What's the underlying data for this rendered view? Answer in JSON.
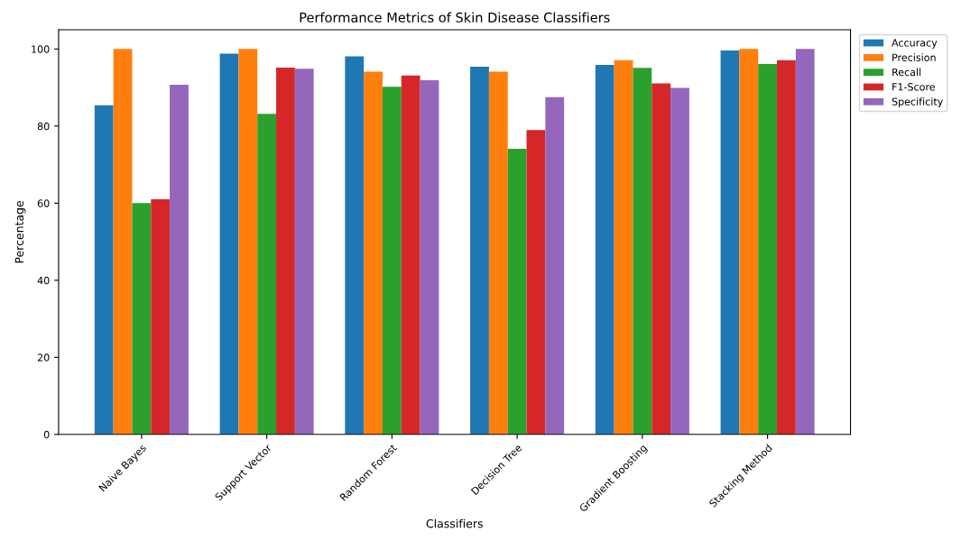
{
  "chart_data": {
    "type": "bar",
    "title": "Performance Metrics of Skin Disease Classifiers",
    "xlabel": "Classifiers",
    "ylabel": "Percentage",
    "categories": [
      "Naive Bayes",
      "Support Vector",
      "Random Forest",
      "Decision Tree",
      "Gradient Boosting",
      "Stacking Method"
    ],
    "series": [
      {
        "name": "Accuracy",
        "color": "#1f77b4",
        "values": [
          85.4,
          98.8,
          98.1,
          95.4,
          95.9,
          99.6
        ]
      },
      {
        "name": "Precision",
        "color": "#ff7f0e",
        "values": [
          100,
          100,
          94.1,
          94.1,
          97.1,
          100
        ]
      },
      {
        "name": "Recall",
        "color": "#2ca02c",
        "values": [
          60,
          83.2,
          90.2,
          74.1,
          95.1,
          96.1
        ]
      },
      {
        "name": "F1-Score",
        "color": "#d62728",
        "values": [
          61,
          95.2,
          93.1,
          79,
          91.1,
          97.1
        ]
      },
      {
        "name": "Specificity",
        "color": "#9467bd",
        "values": [
          90.7,
          94.9,
          91.9,
          87.5,
          89.9,
          100
        ]
      }
    ],
    "ylim": [
      0,
      105
    ],
    "yticks": [
      0,
      20,
      40,
      60,
      80,
      100
    ],
    "legend": "upper right outside",
    "grid": false
  }
}
